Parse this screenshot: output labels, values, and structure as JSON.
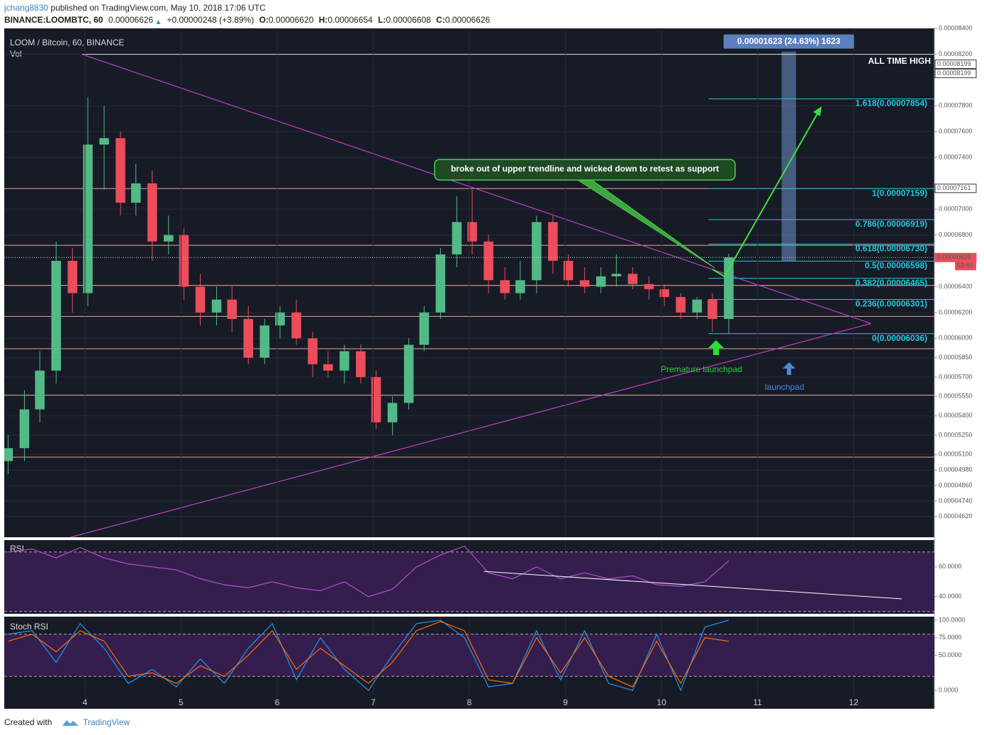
{
  "header": {
    "publisher": "jchang8830",
    "published": "published on TradingView.com, May 10, 2018 17:06 UTC",
    "symbol": "BINANCE:LOOMBTC, 60",
    "last": "0.00006626",
    "change": "+0.00000248 (+3.89%)",
    "ohlc": [
      {
        "label": "O:",
        "value": "0.00006620"
      },
      {
        "label": "H:",
        "value": "0.00006654"
      },
      {
        "label": "L:",
        "value": "0.00006608"
      },
      {
        "label": "C:",
        "value": "0.00006626"
      }
    ]
  },
  "footer": {
    "created": "Created with",
    "brand": "TradingView"
  },
  "chart_data": {
    "type": "candlestick",
    "title": "LOOM / Bitcoin, 60, BINANCE",
    "volume_label": "Vol",
    "up_color": "#53b987",
    "down_color": "#eb4d5c",
    "grid": true,
    "x": [
      3.2,
      3.37,
      3.53,
      3.7,
      3.87,
      4.03,
      4.2,
      4.37,
      4.53,
      4.7,
      4.87,
      5.03,
      5.2,
      5.37,
      5.53,
      5.7,
      5.87,
      6.03,
      6.2,
      6.37,
      6.53,
      6.7,
      6.87,
      7.03,
      7.2,
      7.37,
      7.53,
      7.7,
      7.87,
      8.03,
      8.2,
      8.37,
      8.53,
      8.7,
      8.87,
      9.03,
      9.2,
      9.37,
      9.53,
      9.7,
      9.87,
      10.03,
      10.2,
      10.37,
      10.53,
      10.7
    ],
    "open": [
      5.05e-05,
      5.15e-05,
      5.45e-05,
      5.75e-05,
      6.6e-05,
      6.35e-05,
      7.5e-05,
      7.55e-05,
      7.05e-05,
      7.2e-05,
      6.75e-05,
      6.8e-05,
      6.4e-05,
      6.2e-05,
      6.3e-05,
      6.15e-05,
      5.85e-05,
      6.1e-05,
      6.2e-05,
      6e-05,
      5.8e-05,
      5.75e-05,
      5.9e-05,
      5.7e-05,
      5.35e-05,
      5.5e-05,
      5.95e-05,
      6.2e-05,
      6.65e-05,
      6.9e-05,
      6.75e-05,
      6.45e-05,
      6.35e-05,
      6.45e-05,
      6.9e-05,
      6.6e-05,
      6.45e-05,
      6.4e-05,
      6.48e-05,
      6.5e-05,
      6.42e-05,
      6.38e-05,
      6.32e-05,
      6.2e-05,
      6.3e-05,
      6.15e-05
    ],
    "high": [
      5.25e-05,
      5.6e-05,
      5.9e-05,
      6.75e-05,
      6.7e-05,
      7.87e-05,
      7.8e-05,
      7.6e-05,
      7.35e-05,
      7.3e-05,
      6.95e-05,
      6.85e-05,
      6.5e-05,
      6.4e-05,
      6.4e-05,
      6.25e-05,
      6.15e-05,
      6.25e-05,
      6.3e-05,
      6.05e-05,
      5.9e-05,
      5.95e-05,
      5.95e-05,
      5.75e-05,
      5.55e-05,
      6e-05,
      6.25e-05,
      6.7e-05,
      7.1e-05,
      7.15e-05,
      6.8e-05,
      6.55e-05,
      6.6e-05,
      6.95e-05,
      6.95e-05,
      6.65e-05,
      6.55e-05,
      6.55e-05,
      6.65e-05,
      6.55e-05,
      6.48e-05,
      6.42e-05,
      6.35e-05,
      6.32e-05,
      6.35e-05,
      6.654e-05
    ],
    "low": [
      4.95e-05,
      5.05e-05,
      5.35e-05,
      5.65e-05,
      6.2e-05,
      6.25e-05,
      7.15e-05,
      6.95e-05,
      6.95e-05,
      6.6e-05,
      6.65e-05,
      6.3e-05,
      6.1e-05,
      6.1e-05,
      6.05e-05,
      5.8e-05,
      5.8e-05,
      6e-05,
      5.95e-05,
      5.7e-05,
      5.7e-05,
      5.65e-05,
      5.65e-05,
      5.3e-05,
      5.25e-05,
      5.45e-05,
      5.9e-05,
      6.15e-05,
      6.55e-05,
      6.65e-05,
      6.35e-05,
      6.3e-05,
      6.3e-05,
      6.35e-05,
      6.5e-05,
      6.4e-05,
      6.35e-05,
      6.35e-05,
      6.4e-05,
      6.38e-05,
      6.3e-05,
      6.25e-05,
      6.15e-05,
      6.15e-05,
      6.05e-05,
      6.04e-05
    ],
    "close": [
      5.15e-05,
      5.45e-05,
      5.75e-05,
      6.6e-05,
      6.35e-05,
      7.5e-05,
      7.55e-05,
      7.05e-05,
      7.2e-05,
      6.75e-05,
      6.8e-05,
      6.4e-05,
      6.2e-05,
      6.3e-05,
      6.15e-05,
      5.85e-05,
      6.1e-05,
      6.2e-05,
      6e-05,
      5.8e-05,
      5.75e-05,
      5.9e-05,
      5.7e-05,
      5.35e-05,
      5.5e-05,
      5.95e-05,
      6.2e-05,
      6.65e-05,
      6.9e-05,
      6.75e-05,
      6.45e-05,
      6.35e-05,
      6.45e-05,
      6.9e-05,
      6.6e-05,
      6.45e-05,
      6.4e-05,
      6.48e-05,
      6.5e-05,
      6.42e-05,
      6.38e-05,
      6.32e-05,
      6.2e-05,
      6.3e-05,
      6.15e-05,
      6.626e-05
    ],
    "xlim": [
      3.16,
      12.84
    ],
    "xticks": [
      4,
      5,
      6,
      7,
      8,
      9,
      10,
      11,
      12
    ],
    "ylim": [
      4.46e-05,
      8.4e-05
    ],
    "yticks": [
      {
        "value": 8.4e-05,
        "label": "0.00008400"
      },
      {
        "value": 8.2e-05,
        "label": "0.00008200"
      },
      {
        "value": 7.8e-05,
        "label": "0.00007800"
      },
      {
        "value": 7.6e-05,
        "label": "0.00007600"
      },
      {
        "value": 7.4e-05,
        "label": "0.00007400"
      },
      {
        "value": 7e-05,
        "label": "0.00007000"
      },
      {
        "value": 6.8e-05,
        "label": "0.00006800"
      },
      {
        "value": 6.4e-05,
        "label": "0.00006400"
      },
      {
        "value": 6.2e-05,
        "label": "0.00006200"
      },
      {
        "value": 6e-05,
        "label": "0.00006000"
      },
      {
        "value": 5.85e-05,
        "label": "0.00005850"
      },
      {
        "value": 5.7e-05,
        "label": "0.00005700"
      },
      {
        "value": 5.55e-05,
        "label": "0.00005550"
      },
      {
        "value": 5.4e-05,
        "label": "0.00005400"
      },
      {
        "value": 5.25e-05,
        "label": "0.00005250"
      },
      {
        "value": 5.1e-05,
        "label": "0.00005100"
      },
      {
        "value": 4.98e-05,
        "label": "0.00004980"
      },
      {
        "value": 4.86e-05,
        "label": "0.00004860"
      },
      {
        "value": 4.74e-05,
        "label": "0.00004740"
      },
      {
        "value": 4.62e-05,
        "label": "0.00004620"
      }
    ],
    "horizontal_lines": {
      "color": "#e8a8a0",
      "values": [
        7.16e-05,
        6.72e-05,
        6.41e-05,
        6.17e-05,
        5.92e-05,
        5.56e-05,
        5.08e-05
      ]
    },
    "all_time_high": {
      "label": "ALL TIME HIGH",
      "value": 8.199e-05,
      "axis_labels": [
        {
          "value": 8.199e-05,
          "label": "0.00008199"
        },
        {
          "value": 8.199e-05,
          "label": "0.00008199"
        }
      ]
    },
    "price_labels": [
      {
        "value": 7.161e-05,
        "label": "0.00007161"
      },
      {
        "value": 6.626e-05,
        "label": "0.00006626"
      }
    ],
    "countdown": "53:40",
    "fib": {
      "color": "#26c6da",
      "levels": [
        {
          "value": 7.854e-05,
          "label": "1.618(0.00007854)"
        },
        {
          "value": 7.159e-05,
          "label": "1(0.00007159)"
        },
        {
          "value": 6.919e-05,
          "label": "0.786(0.00006919)"
        },
        {
          "value": 6.73e-05,
          "label": "0.618(0.00006730)"
        },
        {
          "value": 6.598e-05,
          "label": "0.5(0.00006598)"
        },
        {
          "value": 6.465e-05,
          "label": "0.382(0.00006465)"
        },
        {
          "value": 6.301e-05,
          "label": "0.236(0.00006301)"
        },
        {
          "value": 6.036e-05,
          "label": "0(0.00006036)"
        }
      ]
    },
    "trendlines": {
      "color": "#c040c8",
      "lines": [
        {
          "x": [
            3.97,
            12.18
          ],
          "y": [
            8.199e-05,
            6.115e-05
          ]
        },
        {
          "x": [
            3.85,
            12.18
          ],
          "y": [
            4.46e-05,
            6.115e-05
          ]
        }
      ]
    },
    "measure": {
      "label": "0.00001623 (24.63%) 1623",
      "x": [
        11.25,
        11.4
      ],
      "y": [
        6.598e-05,
        8.221e-05
      ]
    },
    "annotations": {
      "callout": "broke out of upper trendline and wicked down to retest as support",
      "premature": "Premature launchpad",
      "launchpad": "launchpad"
    },
    "rsi": {
      "title": "RSI",
      "color": "#b050d0",
      "x": [
        3.2,
        3.45,
        3.7,
        3.95,
        4.2,
        4.45,
        4.7,
        4.95,
        5.2,
        5.45,
        5.7,
        5.95,
        6.2,
        6.45,
        6.7,
        6.95,
        7.2,
        7.45,
        7.7,
        7.95,
        8.2,
        8.45,
        8.7,
        8.95,
        9.2,
        9.45,
        9.7,
        9.95,
        10.2,
        10.45,
        10.7
      ],
      "values": [
        70,
        72,
        66,
        73,
        66,
        62,
        60,
        58,
        52,
        48,
        46,
        50,
        46,
        44,
        50,
        40,
        45,
        60,
        68,
        74,
        56,
        52,
        60,
        52,
        56,
        52,
        54,
        48,
        47,
        50,
        64
      ],
      "ylim": [
        28.5,
        78
      ],
      "yticks": [
        {
          "value": 60,
          "label": "60.0000"
        },
        {
          "value": 40,
          "label": "40.0000"
        }
      ],
      "bands": [
        30,
        70
      ],
      "trendline": {
        "x": [
          8.15,
          12.5
        ],
        "y": [
          57,
          38.5
        ]
      }
    },
    "stoch_rsi": {
      "title": "Stoch RSI",
      "series": [
        {
          "color": "#2196f3",
          "values": [
            80,
            85,
            40,
            95,
            60,
            10,
            30,
            5,
            45,
            10,
            60,
            95,
            15,
            75,
            30,
            0,
            50,
            95,
            100,
            75,
            5,
            10,
            85,
            15,
            85,
            10,
            0,
            80,
            0,
            90,
            100
          ]
        },
        {
          "color": "#ff6d00",
          "values": [
            70,
            80,
            55,
            85,
            70,
            20,
            25,
            10,
            35,
            20,
            50,
            85,
            30,
            60,
            35,
            10,
            40,
            85,
            98,
            85,
            15,
            10,
            75,
            25,
            75,
            20,
            5,
            70,
            10,
            75,
            70
          ]
        }
      ],
      "ylim": [
        -6,
        105
      ],
      "yticks": [
        {
          "value": 100,
          "label": "100.0000"
        },
        {
          "value": 75,
          "label": "75.0000"
        },
        {
          "value": 50,
          "label": "50.0000"
        },
        {
          "value": 0,
          "label": "0.0000"
        }
      ],
      "bands": [
        20,
        80
      ]
    }
  }
}
